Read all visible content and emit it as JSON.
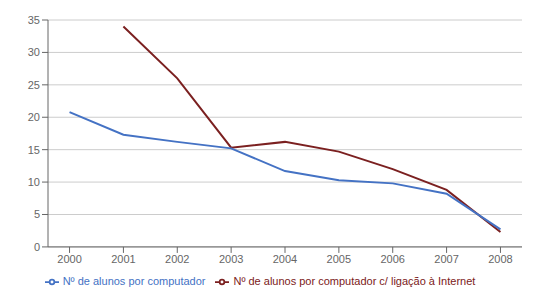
{
  "chart_data": {
    "type": "line",
    "x": [
      2000,
      2001,
      2002,
      2003,
      2004,
      2005,
      2006,
      2007,
      2008
    ],
    "series": [
      {
        "name": "Nº de alunos por computador c/ ligação à Internet",
        "color": "#7B2020",
        "values": [
          null,
          34.0,
          26.0,
          15.3,
          16.2,
          14.7,
          12.0,
          8.8,
          2.3
        ]
      },
      {
        "name": "Nº de alunos por computador",
        "color": "#4472C4",
        "values": [
          20.8,
          17.3,
          16.2,
          15.2,
          11.7,
          10.3,
          9.8,
          8.2,
          2.7
        ]
      }
    ],
    "xlim": [
      1999.6,
      2008.4
    ],
    "xticks": [
      2000,
      2001,
      2002,
      2003,
      2004,
      2005,
      2006,
      2007,
      2008
    ],
    "ylim": [
      0,
      35
    ],
    "yticks": [
      0,
      5,
      10,
      15,
      20,
      25,
      30,
      35
    ],
    "grid": "y",
    "legend": "bottom"
  }
}
